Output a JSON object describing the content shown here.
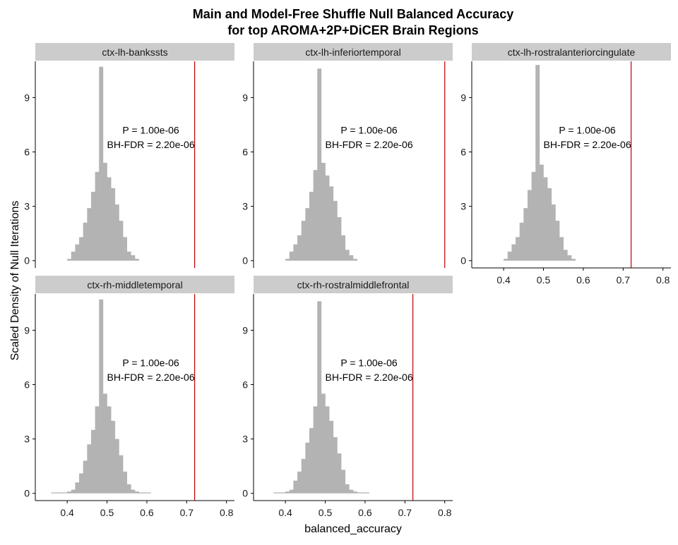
{
  "title": {
    "line1": "Main and Model-Free Shuffle Null Balanced Accuracy",
    "line2": "for top AROMA+2P+DiCER Brain Regions"
  },
  "axes": {
    "xlabel": "balanced_accuracy",
    "ylabel": "Scaled Density of Null Iterations"
  },
  "colors": {
    "bar": "#b3b3b3",
    "strip": "#cccccc",
    "vline": "#c00000",
    "axis": "#000000"
  },
  "chart_data": {
    "type": "bar",
    "title": "Main and Model-Free Shuffle Null Balanced Accuracy for top AROMA+2P+DiCER Brain Regions",
    "xlabel": "balanced_accuracy",
    "ylabel": "Scaled Density of Null Iterations",
    "xlim": [
      0.32,
      0.82
    ],
    "ylim": [
      -0.4,
      11
    ],
    "xticks": [
      0.4,
      0.5,
      0.6,
      0.7,
      0.8
    ],
    "yticks": [
      0,
      3,
      6,
      9
    ],
    "grid": false,
    "bin_width": 0.01,
    "panels": [
      {
        "name": "ctx-lh-bankssts",
        "observed": 0.72,
        "p_label": "P = 1.00e-06",
        "fdr_label": "BH-FDR = 2.20e-06",
        "bins_start": 0.4,
        "values": [
          0.1,
          0.5,
          0.9,
          1.3,
          2.1,
          2.9,
          3.8,
          4.9,
          10.7,
          5.4,
          4.6,
          4.0,
          3.1,
          2.2,
          1.3,
          0.5,
          0.3,
          0.1
        ]
      },
      {
        "name": "ctx-lh-inferiortemporal",
        "observed": 0.8,
        "p_label": "P = 1.00e-06",
        "fdr_label": "BH-FDR = 2.20e-06",
        "bins_start": 0.4,
        "values": [
          0.1,
          0.5,
          0.9,
          1.4,
          2.2,
          2.9,
          3.8,
          5.0,
          10.6,
          5.4,
          4.7,
          4.1,
          3.3,
          2.4,
          1.4,
          0.6,
          0.3,
          0.1
        ]
      },
      {
        "name": "ctx-lh-rostralanteriorcingulate",
        "observed": 0.72,
        "p_label": "P = 1.00e-06",
        "fdr_label": "BH-FDR = 2.20e-06",
        "bins_start": 0.4,
        "values": [
          0.1,
          0.5,
          0.9,
          1.3,
          2.1,
          2.9,
          3.9,
          4.9,
          10.8,
          5.3,
          4.6,
          4.0,
          3.1,
          2.2,
          1.3,
          0.6,
          0.3,
          0.1
        ]
      },
      {
        "name": "ctx-rh-middletemporal",
        "observed": 0.72,
        "p_label": "P = 1.00e-06",
        "fdr_label": "BH-FDR = 2.20e-06",
        "bins_start": 0.36,
        "values": [
          0.05,
          0.05,
          0.05,
          0.05,
          0.1,
          0.2,
          0.6,
          1.1,
          1.8,
          2.7,
          3.5,
          4.8,
          10.7,
          5.5,
          4.8,
          4.0,
          3.0,
          2.1,
          1.2,
          0.5,
          0.2,
          0.1,
          0.05,
          0.05,
          0.05
        ]
      },
      {
        "name": "ctx-rh-rostralmiddlefrontal",
        "observed": 0.72,
        "p_label": "P = 1.00e-06",
        "fdr_label": "BH-FDR = 2.20e-06",
        "bins_start": 0.37,
        "values": [
          0.05,
          0.05,
          0.05,
          0.1,
          0.2,
          0.7,
          1.2,
          1.9,
          2.8,
          3.6,
          4.8,
          10.6,
          5.5,
          4.8,
          4.0,
          3.1,
          2.2,
          1.3,
          0.5,
          0.2,
          0.1,
          0.05,
          0.05,
          0.05
        ]
      }
    ]
  }
}
